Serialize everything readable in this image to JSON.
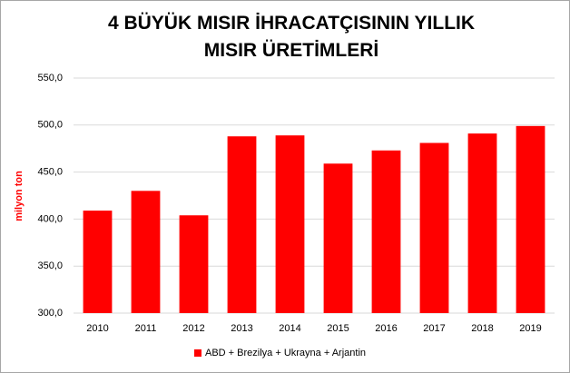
{
  "chart_data": {
    "type": "bar",
    "title": "4 BÜYÜK MISIR İHRACATÇISININ YILLIK MISIR ÜRETİMLERİ",
    "y_label": "milyon ton",
    "categories": [
      "2010",
      "2011",
      "2012",
      "2013",
      "2014",
      "2015",
      "2016",
      "2017",
      "2018",
      "2019"
    ],
    "series": [
      {
        "name": "ABD + Brezilya + Ukrayna + Arjantin",
        "color": "#ff0000",
        "values": [
          409,
          430,
          404,
          488,
          489,
          459,
          473,
          481,
          491,
          499
        ]
      }
    ],
    "ylim": [
      300,
      550
    ],
    "yticks": [
      {
        "value": 300,
        "label": "300,0"
      },
      {
        "value": 350,
        "label": "350,0"
      },
      {
        "value": 400,
        "label": "400,0"
      },
      {
        "value": 450,
        "label": "450,0"
      },
      {
        "value": 500,
        "label": "500,0"
      },
      {
        "value": 550,
        "label": "550,0"
      }
    ],
    "grid": true,
    "legend": "bottom"
  }
}
